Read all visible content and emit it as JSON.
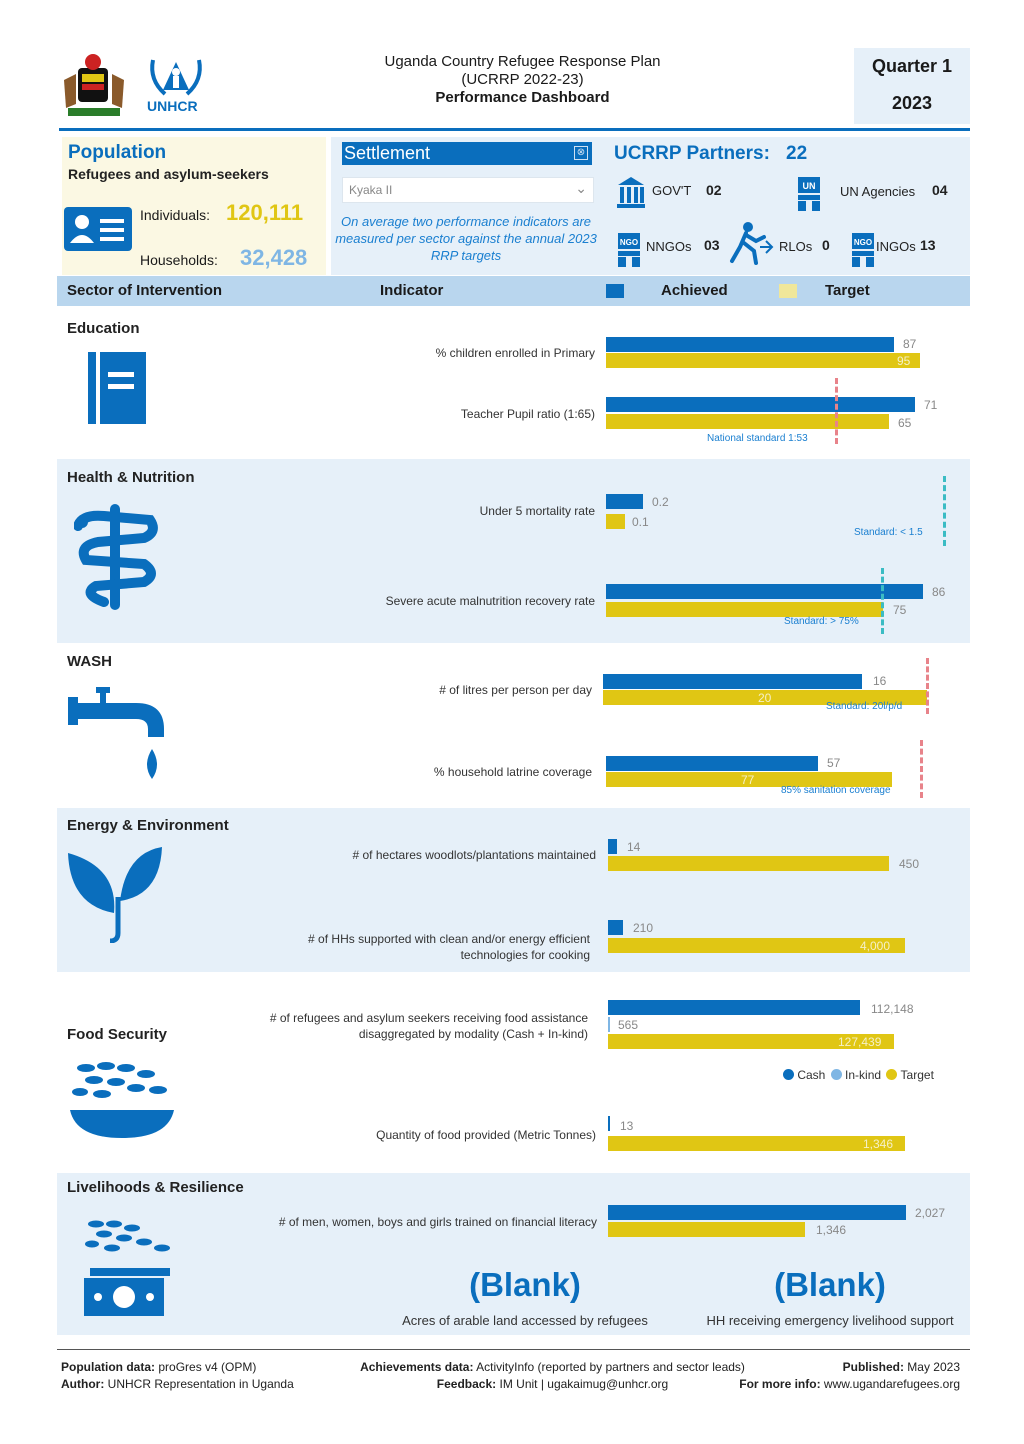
{
  "header": {
    "title_line1": "Uganda Country Refugee Response Plan",
    "title_line2": "(UCRRP 2022-23)",
    "title_line3": "Performance Dashboard",
    "quarter": "Quarter 1",
    "year": "2023",
    "unhcr_logo_text": "UNHCR"
  },
  "population": {
    "title": "Population",
    "subtitle": "Refugees and asylum-seekers",
    "individuals_label": "Individuals:",
    "individuals_value": "120,111",
    "households_label": "Households:",
    "households_value": "32,428"
  },
  "settlement": {
    "label": "Settlement",
    "selected": "Kyaka II",
    "note": "On average two performance indicators are measured per sector against the annual 2023 RRP targets"
  },
  "partners": {
    "title": "UCRRP Partners:",
    "total": "22",
    "items": [
      {
        "label": "GOV'T",
        "value": "02",
        "icon": "government-building-icon"
      },
      {
        "label": "UN Agencies",
        "value": "04",
        "icon": "un-agency-icon"
      },
      {
        "label": "NNGOs",
        "value": "03",
        "icon": "nngo-icon"
      },
      {
        "label": "RLOs",
        "value": "0",
        "icon": "running-person-icon"
      },
      {
        "label": "INGOs",
        "value": "13",
        "icon": "ingo-icon"
      }
    ]
  },
  "table_header": {
    "sector": "Sector of Intervention",
    "indicator": "Indicator",
    "achieved": "Achieved",
    "target": "Target"
  },
  "colors": {
    "achieved": "#0a6ebd",
    "target": "#e0c614",
    "band": "#e6f0f9",
    "header_band": "#b9d6ee",
    "accent": "#1a7fd0"
  },
  "sectors": {
    "education": {
      "title": "Education",
      "icon": "book-icon"
    },
    "health": {
      "title": "Health & Nutrition",
      "icon": "caduceus-icon"
    },
    "wash": {
      "title": "WASH",
      "icon": "water-tap-icon"
    },
    "energy": {
      "title": "Energy & Environment",
      "icon": "plant-icon"
    },
    "food": {
      "title": "Food Security",
      "icon": "food-bowl-icon"
    },
    "livelihoods": {
      "title": "Livelihoods & Resilience",
      "icon": "money-icon"
    }
  },
  "chart_data": [
    {
      "type": "bar",
      "sector": "Education",
      "indicator": "% children enrolled in Primary",
      "achieved": 87,
      "target": 95
    },
    {
      "type": "bar",
      "sector": "Education",
      "indicator": "Teacher Pupil ratio (1:65)",
      "achieved": 71,
      "target": 65,
      "standard_label": "National standard 1:53"
    },
    {
      "type": "bar",
      "sector": "Health & Nutrition",
      "indicator": "Under 5 mortality rate",
      "achieved": 0.2,
      "target": 0.1,
      "standard_label": "Standard: < 1.5"
    },
    {
      "type": "bar",
      "sector": "Health & Nutrition",
      "indicator": "Severe acute malnutrition recovery rate",
      "achieved": 86,
      "target": 75,
      "standard_label": "Standard: > 75%"
    },
    {
      "type": "bar",
      "sector": "WASH",
      "indicator": "# of litres per person per day",
      "achieved": 16,
      "target": 20,
      "standard_label": "Standard: 20l/p/d"
    },
    {
      "type": "bar",
      "sector": "WASH",
      "indicator": "% household latrine coverage",
      "achieved": 57,
      "target": 77,
      "standard_label": "85% sanitation coverage"
    },
    {
      "type": "bar",
      "sector": "Energy & Environment",
      "indicator": "# of hectares woodlots/plantations maintained",
      "achieved": 14,
      "target": 450
    },
    {
      "type": "bar",
      "sector": "Energy & Environment",
      "indicator": "# of HHs supported with clean and/or energy efficient technologies for cooking",
      "achieved": 210,
      "target": 4000
    },
    {
      "type": "bar",
      "sector": "Food Security",
      "indicator": "# of refugees and asylum seekers receiving food assistance disaggregated by modality (Cash + In-kind)",
      "cash": 112148,
      "in_kind": 565,
      "target": 127439,
      "legend": [
        "Cash",
        "In-kind",
        "Target"
      ]
    },
    {
      "type": "bar",
      "sector": "Food Security",
      "indicator": "Quantity of food provided (Metric Tonnes)",
      "achieved": 13,
      "target": 1346
    },
    {
      "type": "bar",
      "sector": "Livelihoods & Resilience",
      "indicator": "# of men, women, boys and girls trained on financial literacy",
      "achieved": 2027,
      "target": 1346
    }
  ],
  "labels": {
    "edu1_ind": "% children enrolled in Primary",
    "edu1_a": "87",
    "edu1_t": "95",
    "edu2_ind": "Teacher Pupil ratio (1:65)",
    "edu2_a": "71",
    "edu2_t": "65",
    "edu2_std": "National standard 1:53",
    "hea1_ind": "Under 5 mortality rate",
    "hea1_a": "0.2",
    "hea1_t": "0.1",
    "hea1_std": "Standard: < 1.5",
    "hea2_ind": "Severe acute malnutrition recovery rate",
    "hea2_a": "86",
    "hea2_t": "75",
    "hea2_std": "Standard: > 75%",
    "was1_ind": "# of litres per person per day",
    "was1_a": "16",
    "was1_t": "20",
    "was1_std": "Standard: 20l/p/d",
    "was2_ind": "% household latrine coverage",
    "was2_a": "57",
    "was2_t": "77",
    "was2_std": "85% sanitation coverage",
    "ene1_ind": "# of hectares woodlots/plantations maintained",
    "ene1_a": "14",
    "ene1_t": "450",
    "ene2_ind": "# of HHs supported with clean and/or energy efficient technologies for cooking",
    "ene2_a": "210",
    "ene2_t": "4,000",
    "foo1_ind": "# of refugees and asylum seekers receiving food assistance disaggregated by modality (Cash + In-kind)",
    "foo1_cash": "112,148",
    "foo1_inkind": "565",
    "foo1_t": "127,439",
    "foo_legend_cash": "Cash",
    "foo_legend_inkind": "In-kind",
    "foo_legend_target": "Target",
    "foo2_ind": "Quantity of food provided (Metric Tonnes)",
    "foo2_a": "13",
    "foo2_t": "1,346",
    "liv1_ind": "# of men, women, boys and girls trained on financial literacy",
    "liv1_a": "2,027",
    "liv1_t": "1,346",
    "blank1": "(Blank)",
    "blank1_caption": "Acres of arable land accessed by refugees",
    "blank2": "(Blank)",
    "blank2_caption": "HH receiving emergency livelihood support"
  },
  "footer": {
    "pop_label": "Population data:",
    "pop_value": "proGres v4 (OPM)",
    "author_label": "Author:",
    "author_value": "UNHCR Representation in Uganda",
    "ach_label": "Achievements data:",
    "ach_value": "ActivityInfo (reported by partners and sector leads)",
    "feedback_label": "Feedback:",
    "feedback_value": "IM Unit | ugakaimug@unhcr.org",
    "pub_label": "Published:",
    "pub_value": "May 2023",
    "info_label": "For more info:",
    "info_value": "www.ugandarefugees.org"
  }
}
